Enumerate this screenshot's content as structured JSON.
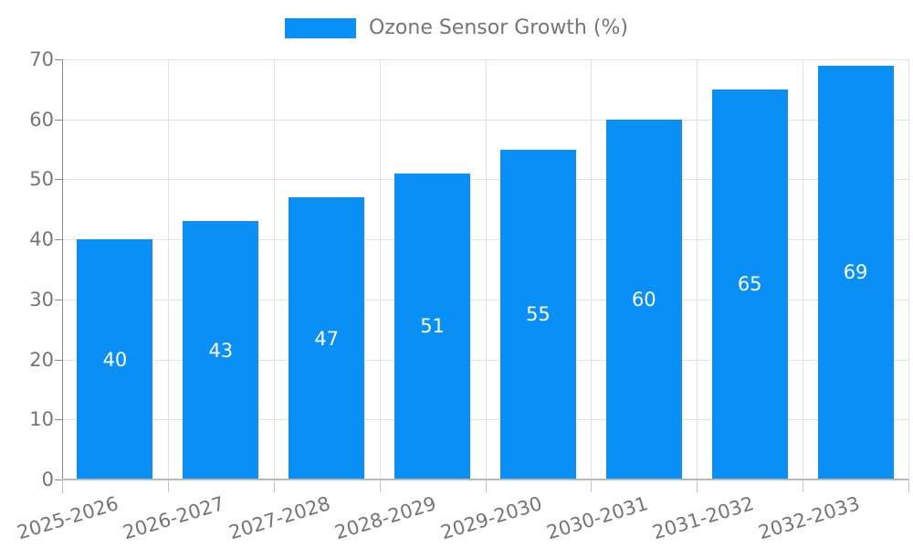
{
  "legend": {
    "label": "Ozone Sensor Growth (%)"
  },
  "chart_data": {
    "type": "bar",
    "title": "",
    "xlabel": "",
    "ylabel": "",
    "categories": [
      "2025-2026",
      "2026-2027",
      "2027-2028",
      "2028-2029",
      "2029-2030",
      "2030-2031",
      "2031-2032",
      "2032-2033"
    ],
    "series": [
      {
        "name": "Ozone Sensor Growth (%)",
        "values": [
          40,
          43,
          47,
          51,
          55,
          60,
          65,
          69
        ]
      }
    ],
    "bar_value_labels": [
      "40",
      "43",
      "47",
      "51",
      "55",
      "60",
      "65",
      "69"
    ],
    "ylim": [
      0,
      70
    ],
    "yticks": [
      0,
      10,
      20,
      30,
      40,
      50,
      60,
      70
    ],
    "grid": true,
    "legend_position": "top-center",
    "bar_label_position": "inside-center"
  },
  "colors": {
    "bar": "#0a8ff5",
    "bar_label": "#ffffff",
    "axis_text": "#757575",
    "legend_text": "#757575",
    "gridline": "#e3e3e3",
    "y_axis_line": "#8a8a8a",
    "x_axis_line": "#b8b8b8",
    "background": "#ffffff"
  }
}
